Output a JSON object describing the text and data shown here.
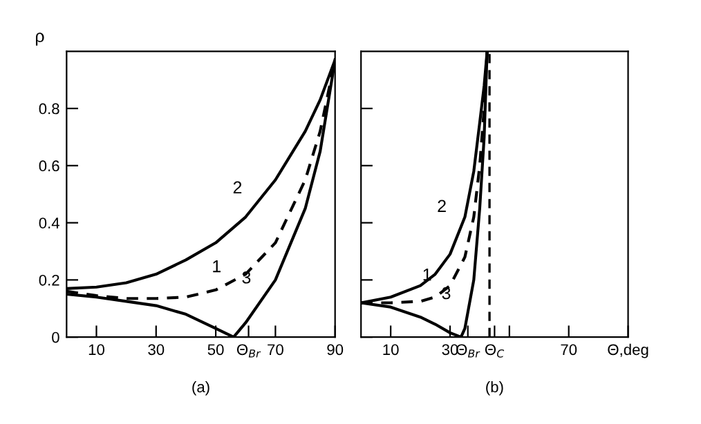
{
  "chart_data": [
    {
      "type": "line",
      "xlabel": "(a)",
      "ylabel": "ρ",
      "xlim": [
        0,
        90
      ],
      "ylim": [
        0,
        1.0
      ],
      "xticks": [
        10,
        30,
        50,
        {
          "value": 61,
          "label": "Θ$_{Br}$"
        },
        70,
        90
      ],
      "yticks": [
        0,
        0.2,
        0.4,
        0.6,
        0.8
      ],
      "grid": false,
      "legend": false,
      "series": [
        {
          "color": "#000000",
          "line_style": "dashed",
          "x": [
            0,
            10,
            20,
            30,
            40,
            50,
            60,
            70,
            80,
            85,
            90
          ],
          "values": [
            0.16,
            0.145,
            0.135,
            0.135,
            0.14,
            0.165,
            0.22,
            0.33,
            0.55,
            0.72,
            0.97
          ]
        },
        {
          "color": "#000000",
          "line_style": "solid",
          "x": [
            0,
            10,
            20,
            30,
            40,
            50,
            60,
            70,
            80,
            85,
            90
          ],
          "values": [
            0.17,
            0.175,
            0.19,
            0.22,
            0.27,
            0.33,
            0.42,
            0.55,
            0.72,
            0.83,
            0.97
          ]
        },
        {
          "color": "#000000",
          "line_style": "solid",
          "x": [
            0,
            10,
            20,
            30,
            40,
            50,
            56,
            60,
            70,
            80,
            85,
            90
          ],
          "values": [
            0.15,
            0.14,
            0.125,
            0.11,
            0.08,
            0.03,
            0,
            0.05,
            0.2,
            0.45,
            0.65,
            0.97
          ]
        }
      ],
      "annotations": [
        {
          "text": "1",
          "x": 58,
          "y": 0.209
        },
        {
          "text": "2",
          "x": 65,
          "y": 0.485
        },
        {
          "text": "3",
          "x": 68,
          "y": 0.17
        }
      ]
    },
    {
      "type": "line",
      "xlabel": "(b)",
      "xlim": [
        0,
        90
      ],
      "ylim": [
        0,
        1.0
      ],
      "tick_labels": "x",
      "xticks": [
        10,
        30,
        {
          "value": 36,
          "label": "Θ$_{Br}$"
        },
        {
          "value": 45,
          "label": "Θ$_{C}$"
        },
        {
          "value": 50,
          "label": null
        },
        70,
        {
          "value": 90,
          "label": "Θ,deg"
        }
      ],
      "yticks": [
        0,
        0.2,
        0.4,
        0.6,
        0.8
      ],
      "grid": false,
      "legend": false,
      "series": [
        {
          "color": "#000000",
          "line_style": "dashed",
          "x": [
            0,
            10,
            20,
            25,
            30,
            35,
            38,
            40,
            41.5,
            42.5
          ],
          "values": [
            0.12,
            0.12,
            0.125,
            0.14,
            0.18,
            0.28,
            0.42,
            0.6,
            0.8,
            1.0
          ]
        },
        {
          "color": "#000000",
          "line_style": "solid",
          "x": [
            0,
            10,
            20,
            25,
            30,
            35,
            38,
            40,
            41.5,
            42.5
          ],
          "values": [
            0.12,
            0.14,
            0.18,
            0.22,
            0.29,
            0.42,
            0.58,
            0.75,
            0.88,
            1.0
          ]
        },
        {
          "color": "#000000",
          "line_style": "solid",
          "x": [
            0,
            10,
            20,
            25,
            30,
            33.7,
            35,
            38,
            40,
            41.5,
            42.5
          ],
          "values": [
            0.12,
            0.105,
            0.07,
            0.045,
            0.015,
            0,
            0.03,
            0.2,
            0.45,
            0.7,
            1.0
          ]
        }
      ],
      "ref_lines": [
        {
          "axis": "x",
          "value": 43.3,
          "color": "#000000",
          "line_style": "dashed"
        }
      ],
      "annotations": [
        {
          "text": "1",
          "x": 30,
          "y": 0.18
        },
        {
          "text": "2",
          "x": 35,
          "y": 0.42
        },
        {
          "text": "3",
          "x": 36.5,
          "y": 0.115
        }
      ]
    }
  ]
}
